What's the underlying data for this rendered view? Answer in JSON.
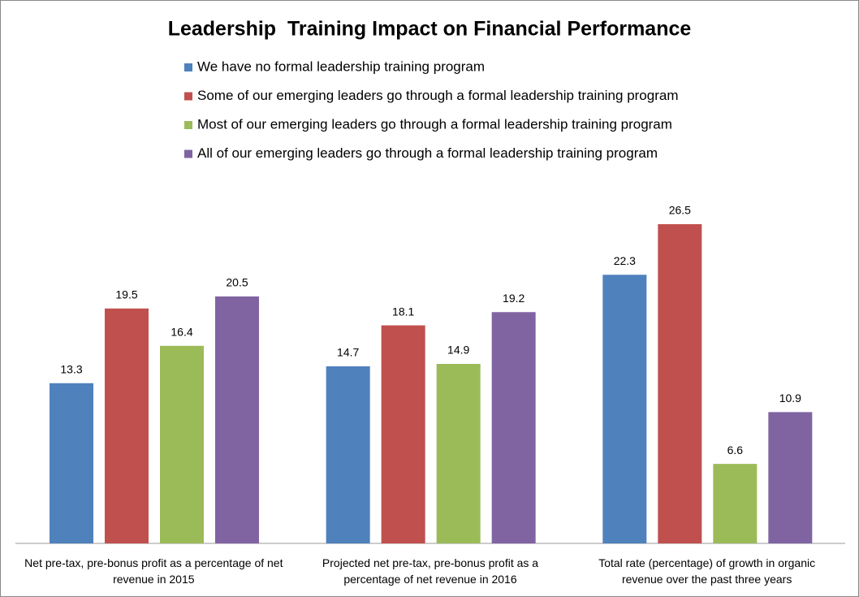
{
  "chart_data": {
    "type": "bar",
    "title": "Leadership  Training Impact on Financial Performance",
    "categories": [
      "Net pre-tax, pre-bonus profit as a percentage of net revenue in 2015",
      "Projected net pre-tax, pre-bonus profit as a percentage of net revenue in 2016",
      "Total rate (percentage) of growth in organic revenue over the past three years"
    ],
    "series": [
      {
        "name": "We have no formal leadership training program",
        "color": "#4f81bd",
        "values": [
          13.3,
          14.7,
          22.3
        ]
      },
      {
        "name": "Some of our emerging leaders go through a formal leadership training program",
        "color": "#c0504d",
        "values": [
          19.5,
          18.1,
          26.5
        ]
      },
      {
        "name": "Most of our emerging leaders go through a formal leadership training program",
        "color": "#9bbb59",
        "values": [
          16.4,
          14.9,
          6.6
        ]
      },
      {
        "name": "All of our emerging leaders go through a formal leadership training program",
        "color": "#8064a2",
        "values": [
          20.5,
          19.2,
          10.9
        ]
      }
    ]
  }
}
